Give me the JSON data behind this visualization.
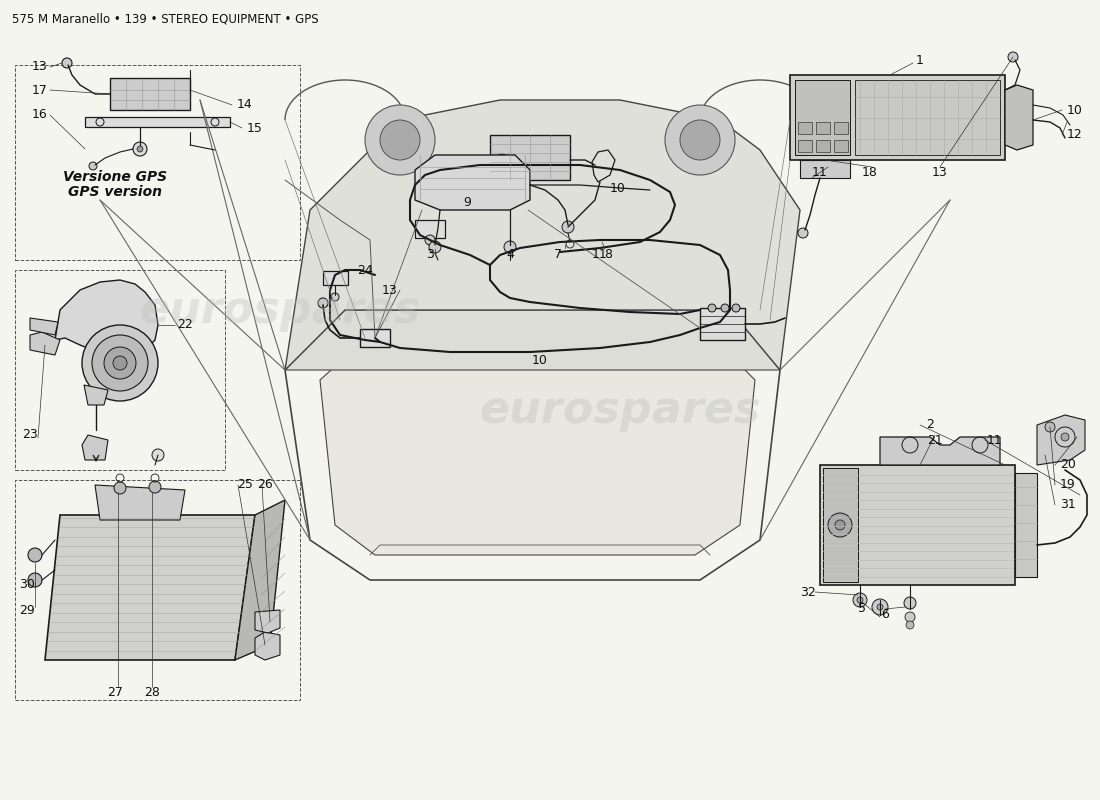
{
  "title": "575 M Maranello • 139 • STEREO EQUIPMENT • GPS",
  "bg": "#f5f5f0",
  "lc": "#1a1a1a",
  "wm": "eurospares",
  "gps1": "Versione GPS",
  "gps2": "GPS version"
}
